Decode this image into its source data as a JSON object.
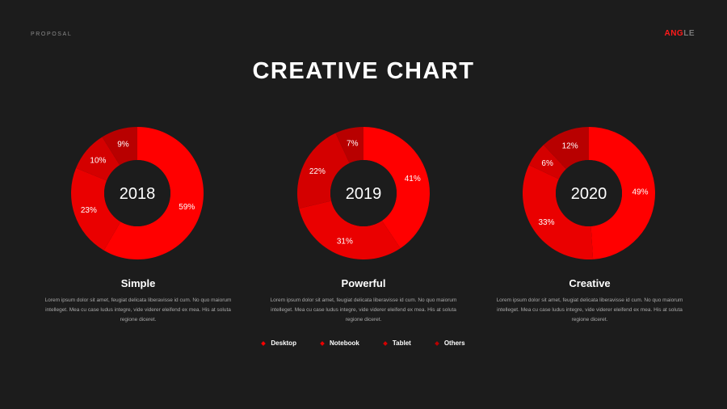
{
  "header": {
    "section_label": "PROPOSAL",
    "brand_accent": "ANG",
    "brand_rest": "LE"
  },
  "title": "CREATIVE CHART",
  "colors": {
    "background": "#1c1c1c",
    "accent": "#ff1a1a",
    "slices": [
      "#ff0000",
      "#ea0000",
      "#d40000",
      "#b80000"
    ]
  },
  "chart_data": [
    {
      "type": "pie",
      "center_label": "2018",
      "categories": [
        "Desktop",
        "Notebook",
        "Tablet",
        "Others"
      ],
      "values": [
        59,
        23,
        10,
        9
      ],
      "data_labels": [
        "59%",
        "23%",
        "10%",
        "9%"
      ]
    },
    {
      "type": "pie",
      "center_label": "2019",
      "categories": [
        "Desktop",
        "Notebook",
        "Tablet",
        "Others"
      ],
      "values": [
        41,
        31,
        22,
        7
      ],
      "data_labels": [
        "41%",
        "31%",
        "22%",
        "7%"
      ]
    },
    {
      "type": "pie",
      "center_label": "2020",
      "categories": [
        "Desktop",
        "Notebook",
        "Tablet",
        "Others"
      ],
      "values": [
        49,
        33,
        6,
        12
      ],
      "data_labels": [
        "49%",
        "33%",
        "6%",
        "12%"
      ]
    }
  ],
  "columns": [
    {
      "heading": "Simple",
      "text": "Lorem ipsum dolor sit amet, feugiat delicata liberavisse id cum. No quo maiorum intelleget. Mea cu case ludus integre, vide viderer eleifend ex mea. His at soluta regione diceret."
    },
    {
      "heading": "Powerful",
      "text": "Lorem ipsum dolor sit amet, feugiat delicata liberavisse id cum. No quo maiorum intelleget. Mea cu case ludus integre, vide viderer eleifend ex mea. His at soluta regione diceret."
    },
    {
      "heading": "Creative",
      "text": "Lorem ipsum dolor sit amet, feugiat delicata liberavisse id cum. No quo maiorum intelleget. Mea cu case ludus integre, vide viderer eleifend ex mea. His at soluta regione diceret."
    }
  ],
  "legend": [
    "Desktop",
    "Notebook",
    "Tablet",
    "Others"
  ]
}
